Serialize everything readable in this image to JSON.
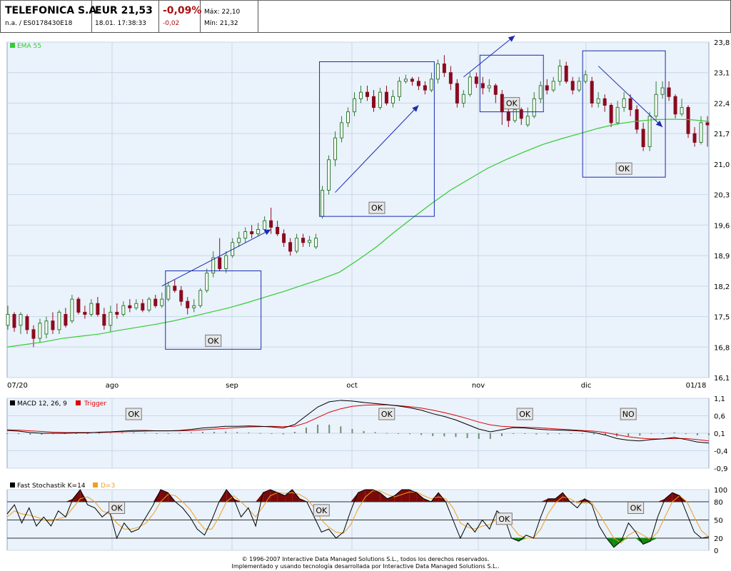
{
  "header": {
    "name": "TELEFONICA S.A.",
    "na": "n.a.",
    "sep": "/",
    "isin": "ES0178430E18",
    "price": "EUR 21,53",
    "datetime": "18.01. 17:38:33",
    "change_pct": "-0,09%",
    "change_abs": "-0,02",
    "max": "Máx: 22,10",
    "min": "Mín: 21,32"
  },
  "footer": {
    "line1": "© 1996-2007 Interactive Data Managed Solutions S.L., todos los derechos reservados.",
    "line2": "Implementado y usando tecnología desarrollada por Interactive Data Managed Solutions S.L.."
  },
  "colors": {
    "panel_bg": "#eaf2fb",
    "grid": "#c9d8ea",
    "border": "#8fa6c1",
    "up": "#2e7d2e",
    "down": "#8b0a1e",
    "ema": "#33cc33",
    "box": "#1a2db0",
    "arrow": "#1a2db0",
    "macd": "#000000",
    "trigger": "#dd0000",
    "hist": "#6f8f6f",
    "stoch_k": "#000000",
    "stoch_d": "#f0a020",
    "fill_over": "#7a0a0a",
    "fill_under": "#0d8a0d"
  },
  "chart_data": [
    {
      "type": "candlestick",
      "legend": "EMA 55",
      "ylim": [
        16.1,
        23.8
      ],
      "y_ticks": [
        "23,8",
        "23,1",
        "22,4",
        "21,7",
        "21,0",
        "20,3",
        "19,6",
        "18,9",
        "18,2",
        "17,5",
        "16,8",
        "16,1"
      ],
      "x_ticks": [
        "07/20",
        "ago",
        "sep",
        "oct",
        "nov",
        "dic",
        "01/18"
      ],
      "candles": [
        [
          17.3,
          17.55,
          17.75,
          17.2
        ],
        [
          17.55,
          17.25,
          17.6,
          17.15
        ],
        [
          17.3,
          17.55,
          17.6,
          17.1
        ],
        [
          17.5,
          17.2,
          17.55,
          17.1
        ],
        [
          17.2,
          17.0,
          17.3,
          16.8
        ],
        [
          17.0,
          17.35,
          17.45,
          16.9
        ],
        [
          17.1,
          17.4,
          17.5,
          17.0
        ],
        [
          17.4,
          17.2,
          17.6,
          17.1
        ],
        [
          17.2,
          17.6,
          17.65,
          17.1
        ],
        [
          17.55,
          17.3,
          17.7,
          17.25
        ],
        [
          17.4,
          17.9,
          18.0,
          17.35
        ],
        [
          17.9,
          17.6,
          17.95,
          17.55
        ],
        [
          17.6,
          17.55,
          17.75,
          17.45
        ],
        [
          17.55,
          17.8,
          17.9,
          17.5
        ],
        [
          17.8,
          17.55,
          17.95,
          17.5
        ],
        [
          17.55,
          17.3,
          17.7,
          17.2
        ],
        [
          17.3,
          17.6,
          17.75,
          17.15
        ],
        [
          17.6,
          17.55,
          17.8,
          17.45
        ],
        [
          17.55,
          17.75,
          17.85,
          17.5
        ],
        [
          17.75,
          17.7,
          17.9,
          17.6
        ],
        [
          17.7,
          17.8,
          17.9,
          17.65
        ],
        [
          17.8,
          17.65,
          17.9,
          17.6
        ],
        [
          17.65,
          17.9,
          17.95,
          17.6
        ],
        [
          17.9,
          17.75,
          18.0,
          17.7
        ],
        [
          17.75,
          17.9,
          18.05,
          17.7
        ],
        [
          17.9,
          18.2,
          18.3,
          17.85
        ],
        [
          18.2,
          18.1,
          18.35,
          18.05
        ],
        [
          18.1,
          17.85,
          18.2,
          17.75
        ],
        [
          17.85,
          17.7,
          17.95,
          17.55
        ],
        [
          17.7,
          17.75,
          17.9,
          17.6
        ],
        [
          17.75,
          18.1,
          18.15,
          17.7
        ],
        [
          18.1,
          18.5,
          18.6,
          18.05
        ],
        [
          18.5,
          18.85,
          19.0,
          18.4
        ],
        [
          18.85,
          18.6,
          19.3,
          18.55
        ],
        [
          18.6,
          18.9,
          19.0,
          18.5
        ],
        [
          18.9,
          19.2,
          19.3,
          18.85
        ],
        [
          19.2,
          19.3,
          19.45,
          19.1
        ],
        [
          19.3,
          19.45,
          19.55,
          19.2
        ],
        [
          19.45,
          19.4,
          19.6,
          19.3
        ],
        [
          19.4,
          19.5,
          19.65,
          19.35
        ],
        [
          19.5,
          19.7,
          19.8,
          19.45
        ],
        [
          19.7,
          19.55,
          20.0,
          19.4
        ],
        [
          19.55,
          19.4,
          19.7,
          19.35
        ],
        [
          19.4,
          19.2,
          19.5,
          19.1
        ],
        [
          19.2,
          19.0,
          19.3,
          18.9
        ],
        [
          19.0,
          19.3,
          19.4,
          18.95
        ],
        [
          19.3,
          19.2,
          19.4,
          19.1
        ],
        [
          19.2,
          19.25,
          19.35,
          19.1
        ],
        [
          19.1,
          19.3,
          19.4,
          19.05
        ],
        [
          19.8,
          20.4,
          20.5,
          19.75
        ],
        [
          20.4,
          21.1,
          21.2,
          20.3
        ],
        [
          21.1,
          21.6,
          21.75,
          20.95
        ],
        [
          21.6,
          21.95,
          22.1,
          21.5
        ],
        [
          21.95,
          22.2,
          22.3,
          21.85
        ],
        [
          22.2,
          22.5,
          22.65,
          22.1
        ],
        [
          22.5,
          22.65,
          22.8,
          22.4
        ],
        [
          22.65,
          22.55,
          22.8,
          22.45
        ],
        [
          22.55,
          22.3,
          22.7,
          22.2
        ],
        [
          22.3,
          22.65,
          22.75,
          22.25
        ],
        [
          22.65,
          22.4,
          22.8,
          22.35
        ],
        [
          22.4,
          22.55,
          22.7,
          22.3
        ],
        [
          22.55,
          22.9,
          23.0,
          22.45
        ],
        [
          22.9,
          22.95,
          23.05,
          22.85
        ],
        [
          22.95,
          22.9,
          23.0,
          22.8
        ],
        [
          22.9,
          22.8,
          23.0,
          22.7
        ],
        [
          22.8,
          22.7,
          22.9,
          22.6
        ],
        [
          22.7,
          22.95,
          23.1,
          22.65
        ],
        [
          22.95,
          23.3,
          23.4,
          22.85
        ],
        [
          23.3,
          23.1,
          23.5,
          23.0
        ],
        [
          23.1,
          22.85,
          23.25,
          22.7
        ],
        [
          22.85,
          22.4,
          22.95,
          22.3
        ],
        [
          22.4,
          22.6,
          22.7,
          22.3
        ],
        [
          22.6,
          23.0,
          23.1,
          22.55
        ],
        [
          23.0,
          22.85,
          23.1,
          22.75
        ],
        [
          22.85,
          22.75,
          23.0,
          22.6
        ],
        [
          22.75,
          22.8,
          22.95,
          22.65
        ],
        [
          22.8,
          22.6,
          22.85,
          22.4
        ],
        [
          22.6,
          22.2,
          22.7,
          21.9
        ],
        [
          22.2,
          22.0,
          22.3,
          21.85
        ],
        [
          22.0,
          22.25,
          22.4,
          21.95
        ],
        [
          22.25,
          22.05,
          22.3,
          21.9
        ],
        [
          21.9,
          22.1,
          22.3,
          21.85
        ],
        [
          22.1,
          22.5,
          22.65,
          22.05
        ],
        [
          22.5,
          22.8,
          22.9,
          22.4
        ],
        [
          22.8,
          22.7,
          22.95,
          22.6
        ],
        [
          22.7,
          22.9,
          23.0,
          22.65
        ],
        [
          22.9,
          23.25,
          23.4,
          22.8
        ],
        [
          23.25,
          22.9,
          23.35,
          22.85
        ],
        [
          22.9,
          22.7,
          23.0,
          22.6
        ],
        [
          22.7,
          22.9,
          23.0,
          22.65
        ],
        [
          22.9,
          23.05,
          23.15,
          22.85
        ],
        [
          22.9,
          22.4,
          23.0,
          22.3
        ],
        [
          22.4,
          22.5,
          22.65,
          22.3
        ],
        [
          22.5,
          22.35,
          22.6,
          22.2
        ],
        [
          22.35,
          21.95,
          22.4,
          21.85
        ],
        [
          21.95,
          22.3,
          22.45,
          21.9
        ],
        [
          22.3,
          22.5,
          22.65,
          22.2
        ],
        [
          22.5,
          22.25,
          22.6,
          22.1
        ],
        [
          22.25,
          21.8,
          22.35,
          21.7
        ],
        [
          21.8,
          21.4,
          21.95,
          21.3
        ],
        [
          21.4,
          22.1,
          22.2,
          21.3
        ],
        [
          22.1,
          22.6,
          22.9,
          22.0
        ],
        [
          22.6,
          22.75,
          22.9,
          22.5
        ],
        [
          22.75,
          22.55,
          22.9,
          22.45
        ],
        [
          22.55,
          22.15,
          22.6,
          22.05
        ],
        [
          22.15,
          22.3,
          22.5,
          22.1
        ],
        [
          22.3,
          21.7,
          22.35,
          21.6
        ],
        [
          21.7,
          21.5,
          21.85,
          21.4
        ],
        [
          21.5,
          21.95,
          22.1,
          21.45
        ],
        [
          21.95,
          21.9,
          22.1,
          21.4
        ]
      ],
      "ema": [
        16.8,
        16.86,
        16.92,
        17.0,
        17.05,
        17.1,
        17.18,
        17.25,
        17.32,
        17.4,
        17.5,
        17.6,
        17.7,
        17.82,
        17.95,
        18.08,
        18.22,
        18.36,
        18.52,
        18.8,
        19.1,
        19.45,
        19.78,
        20.1,
        20.4,
        20.65,
        20.9,
        21.1,
        21.28,
        21.45,
        21.58,
        21.7,
        21.82,
        21.92,
        21.98,
        22.02,
        22.03,
        22.02,
        21.98
      ],
      "boxes": [
        {
          "label": "OK",
          "from_candle": 25,
          "to_candle": 39,
          "ymin": 16.75,
          "ymax": 18.55
        },
        {
          "label": "OK",
          "from_candle": 49,
          "to_candle": 66,
          "ymin": 19.8,
          "ymax": 23.35
        },
        {
          "label": "OK",
          "from_candle": 74,
          "to_candle": 83,
          "ymin": 22.2,
          "ymax": 23.5
        },
        {
          "label": "OK",
          "from_candle": 90,
          "to_candle": 102,
          "ymin": 20.7,
          "ymax": 23.6
        }
      ],
      "arrows": [
        {
          "from": [
            24,
            18.2
          ],
          "to": [
            41,
            19.5
          ]
        },
        {
          "from": [
            51,
            20.35
          ],
          "to": [
            64,
            22.35
          ]
        },
        {
          "from": [
            71,
            23.0
          ],
          "to": [
            79,
            23.95
          ]
        },
        {
          "from": [
            92,
            23.25
          ],
          "to": [
            102,
            21.85
          ]
        }
      ]
    },
    {
      "type": "line",
      "legend": [
        "MACD 12, 26, 9",
        "Trigger"
      ],
      "ylim": [
        -0.9,
        1.1
      ],
      "y_ticks": [
        "1,1",
        "0,6",
        "0,1",
        "-0,4",
        "-0,9"
      ],
      "macd": [
        0.18,
        0.16,
        0.12,
        0.1,
        0.1,
        0.1,
        0.11,
        0.11,
        0.13,
        0.14,
        0.16,
        0.18,
        0.18,
        0.17,
        0.17,
        0.18,
        0.21,
        0.25,
        0.27,
        0.3,
        0.3,
        0.31,
        0.3,
        0.28,
        0.25,
        0.35,
        0.6,
        0.85,
        1.0,
        1.04,
        1.02,
        0.98,
        0.95,
        0.92,
        0.88,
        0.83,
        0.76,
        0.66,
        0.58,
        0.48,
        0.35,
        0.22,
        0.14,
        0.2,
        0.26,
        0.25,
        0.22,
        0.2,
        0.19,
        0.18,
        0.16,
        0.12,
        0.05,
        -0.05,
        -0.1,
        -0.12,
        -0.08,
        -0.06,
        -0.02,
        -0.08,
        -0.15,
        -0.18
      ],
      "trigger": [
        0.2,
        0.19,
        0.17,
        0.15,
        0.13,
        0.12,
        0.12,
        0.12,
        0.12,
        0.13,
        0.14,
        0.15,
        0.16,
        0.17,
        0.17,
        0.17,
        0.18,
        0.2,
        0.22,
        0.24,
        0.26,
        0.28,
        0.29,
        0.3,
        0.29,
        0.3,
        0.4,
        0.55,
        0.7,
        0.8,
        0.87,
        0.9,
        0.91,
        0.91,
        0.89,
        0.86,
        0.82,
        0.76,
        0.69,
        0.61,
        0.52,
        0.42,
        0.34,
        0.3,
        0.28,
        0.27,
        0.26,
        0.24,
        0.22,
        0.2,
        0.18,
        0.16,
        0.12,
        0.06,
        0.0,
        -0.04,
        -0.06,
        -0.06,
        -0.05,
        -0.05,
        -0.08,
        -0.12
      ],
      "labels": [
        {
          "label": "OK",
          "at": 11
        },
        {
          "label": "OK",
          "at": 33
        },
        {
          "label": "OK",
          "at": 45
        },
        {
          "label": "NO",
          "at": 54
        }
      ]
    },
    {
      "type": "line",
      "legend": [
        "Fast Stochastik K=14",
        "D=3"
      ],
      "ylim": [
        0,
        100
      ],
      "y_ticks": [
        "100",
        "80",
        "50",
        "20",
        "0"
      ],
      "ref_lines": [
        80,
        50,
        20
      ],
      "k": [
        60,
        75,
        45,
        70,
        40,
        55,
        40,
        65,
        55,
        85,
        100,
        75,
        70,
        55,
        65,
        20,
        45,
        30,
        35,
        55,
        75,
        100,
        95,
        80,
        70,
        55,
        35,
        25,
        50,
        80,
        100,
        85,
        55,
        70,
        40,
        95,
        100,
        95,
        90,
        100,
        85,
        80,
        55,
        30,
        35,
        20,
        30,
        65,
        95,
        100,
        100,
        95,
        85,
        90,
        100,
        100,
        95,
        85,
        80,
        95,
        80,
        50,
        20,
        45,
        30,
        50,
        35,
        65,
        55,
        20,
        15,
        25,
        20,
        55,
        85,
        85,
        95,
        80,
        70,
        85,
        75,
        40,
        20,
        5,
        15,
        45,
        30,
        10,
        15,
        55,
        85,
        95,
        90,
        60,
        30,
        20,
        22
      ],
      "d": [
        55,
        65,
        60,
        58,
        55,
        50,
        48,
        52,
        55,
        70,
        85,
        88,
        80,
        65,
        60,
        45,
        35,
        35,
        38,
        45,
        60,
        80,
        92,
        90,
        80,
        68,
        50,
        35,
        35,
        55,
        80,
        90,
        80,
        68,
        55,
        72,
        90,
        95,
        94,
        95,
        92,
        85,
        70,
        50,
        38,
        30,
        28,
        42,
        68,
        88,
        98,
        98,
        92,
        88,
        92,
        96,
        96,
        90,
        85,
        88,
        85,
        70,
        45,
        38,
        35,
        40,
        42,
        52,
        55,
        40,
        25,
        20,
        20,
        35,
        60,
        78,
        88,
        85,
        78,
        78,
        78,
        60,
        40,
        20,
        12,
        25,
        32,
        25,
        18,
        30,
        55,
        80,
        90,
        80,
        55,
        32,
        22
      ],
      "labels": [
        {
          "label": "OK",
          "at": 15
        },
        {
          "label": "OK",
          "at": 43
        },
        {
          "label": "OK",
          "at": 68
        },
        {
          "label": "OK",
          "at": 86
        }
      ]
    }
  ]
}
